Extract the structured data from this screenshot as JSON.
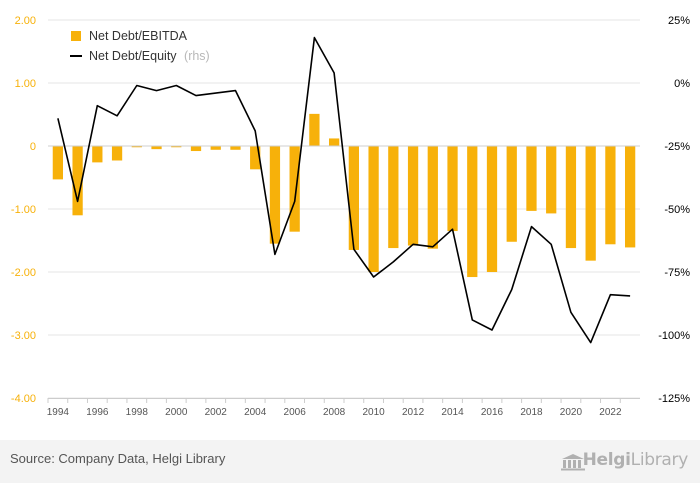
{
  "footer": {
    "source": "Source: Company Data, Helgi Library",
    "logo_part1": "Helgi",
    "logo_part2": "Library"
  },
  "colors": {
    "bar": "#F7B10A",
    "line": "#000000",
    "left_axis_text": "#F7B10A",
    "right_axis_text": "#000000",
    "grid": "#e6e6e6"
  },
  "chart_data": {
    "type": "bar",
    "title": "",
    "legend": {
      "placement": "top-left",
      "entries": [
        {
          "label": "Net Debt/EBITDA",
          "suffix": ""
        },
        {
          "label": "Net Debt/Equity",
          "suffix": "(rhs)"
        }
      ]
    },
    "x": [
      1994,
      1995,
      1996,
      1997,
      1998,
      1999,
      2000,
      2001,
      2002,
      2003,
      2004,
      2005,
      2006,
      2007,
      2008,
      2009,
      2010,
      2011,
      2012,
      2013,
      2014,
      2015,
      2016,
      2017,
      2018,
      2019,
      2020,
      2021,
      2022,
      2023
    ],
    "x_tick_labels": [
      "1994",
      "1996",
      "1998",
      "2000",
      "2002",
      "2004",
      "2006",
      "2008",
      "2010",
      "2012",
      "2014",
      "2016",
      "2018",
      "2020",
      "2022"
    ],
    "y_left": {
      "min": -4,
      "max": 2,
      "ticks": [
        "2.00",
        "1.00",
        "0",
        "-1.00",
        "-2.00",
        "-3.00",
        "-4.00"
      ]
    },
    "y_right": {
      "min": -125,
      "max": 25,
      "ticks": [
        "25%",
        "0%",
        "-25%",
        "-50%",
        "-75%",
        "-100%",
        "-125%"
      ]
    },
    "grid": true,
    "series": [
      {
        "name": "Net Debt/EBITDA",
        "type": "bar",
        "axis": "left",
        "values": [
          -0.53,
          -1.1,
          -0.26,
          -0.23,
          -0.02,
          -0.05,
          -0.02,
          -0.08,
          -0.06,
          -0.06,
          -0.37,
          -1.55,
          -1.36,
          0.51,
          0.12,
          -1.65,
          -2.0,
          -1.62,
          -1.58,
          -1.63,
          -1.35,
          -2.08,
          -2.0,
          -1.52,
          -1.03,
          -1.07,
          -1.62,
          -1.82,
          -1.56,
          -1.61
        ]
      },
      {
        "name": "Net Debt/Equity",
        "type": "line",
        "axis": "right",
        "values": [
          -14,
          -47,
          -9,
          -13,
          -1,
          -3,
          -1,
          -5,
          -4,
          -3,
          -19,
          -68,
          -47,
          18,
          4,
          -66,
          -77,
          -71,
          -64,
          -65,
          -58,
          -94,
          -98,
          -82,
          -57,
          -64,
          -91,
          -103,
          -84,
          -84.5
        ]
      }
    ]
  }
}
